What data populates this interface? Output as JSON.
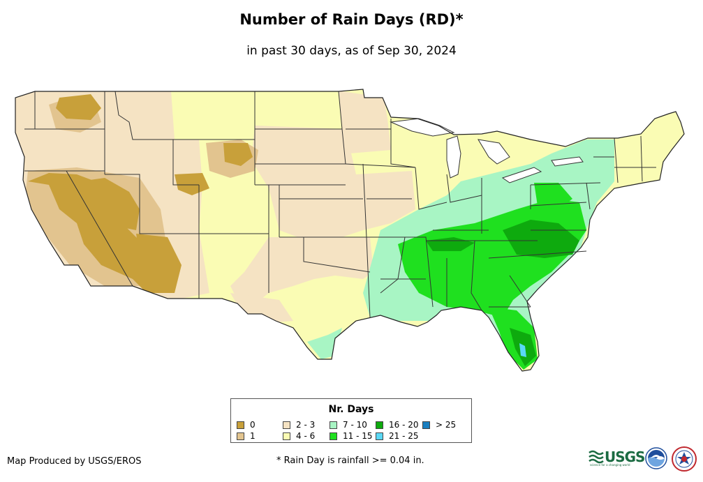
{
  "title": "Number of Rain Days (RD)*",
  "subtitle": "in past 30 days, as of Sep 30, 2024",
  "legend": {
    "title": "Nr. Days",
    "items": [
      {
        "label": "0",
        "color": "#c8a03a"
      },
      {
        "label": "1",
        "color": "#e2c48f"
      },
      {
        "label": "2 - 3",
        "color": "#f5e3c3"
      },
      {
        "label": "4 - 6",
        "color": "#fafcb4"
      },
      {
        "label": "7 - 10",
        "color": "#a8f5c4"
      },
      {
        "label": "11 - 15",
        "color": "#1fe01f"
      },
      {
        "label": "16 - 20",
        "color": "#0eaa0e"
      },
      {
        "label": "21 - 25",
        "color": "#5ad8f5"
      },
      {
        "label": "> 25",
        "color": "#1a7fc0"
      }
    ]
  },
  "credit": "Map Produced by USGS/EROS",
  "footnote": "* Rain Day is rainfall >= 0.04 in.",
  "logos": {
    "usgs_text": "USGS",
    "usgs_tagline": "science for a changing world"
  }
}
